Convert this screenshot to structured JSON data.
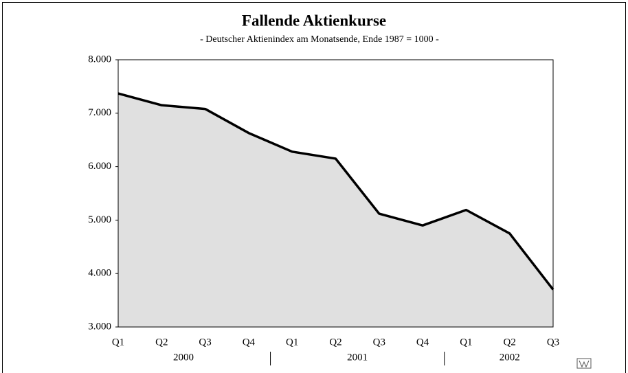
{
  "chart_data": {
    "type": "area",
    "title": "Fallende Aktienkurse",
    "subtitle": "- Deutscher Aktienindex am Monatsende, Ende 1987 = 1000 -",
    "categories": [
      "Q1",
      "Q2",
      "Q3",
      "Q4",
      "Q1",
      "Q2",
      "Q3",
      "Q4",
      "Q1",
      "Q2",
      "Q3"
    ],
    "years": [
      "2000",
      "2001",
      "2002"
    ],
    "values": [
      7370,
      7150,
      7080,
      6630,
      6280,
      6150,
      5120,
      4900,
      5190,
      4750,
      3700
    ],
    "color": "#e0e0e0",
    "line_color": "#000000",
    "ylim": [
      3000,
      8000
    ],
    "yticks": [
      {
        "value": 3000,
        "label": "3.000"
      },
      {
        "value": 4000,
        "label": "4.000"
      },
      {
        "value": 5000,
        "label": "5.000"
      },
      {
        "value": 6000,
        "label": "6.000"
      },
      {
        "value": 7000,
        "label": "7.000"
      },
      {
        "value": 8000,
        "label": "8.000"
      }
    ],
    "grid": false
  }
}
